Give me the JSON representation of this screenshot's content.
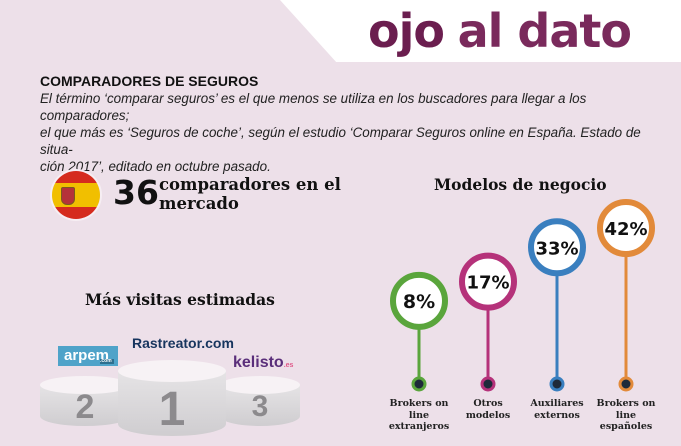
{
  "header": {
    "brand_part1": "ojo",
    "brand_part2": "al dato"
  },
  "section": {
    "title": "COMPARADORES DE SEGUROS",
    "intro_lines": [
      "El término ‘comparar seguros’ es el que menos se utiliza en los buscadores para llegar a los comparadores;",
      "el que más es ‘Seguros de coche’, según el estudio ‘Comparar Seguros online en España. Estado de situa-",
      "ción 2017’, editado en octubre pasado."
    ]
  },
  "count": {
    "number": "36",
    "label": "comparadores en el mercado",
    "icon": "spain-flag-icon"
  },
  "visits": {
    "title": "Más visitas estimadas",
    "podium": [
      {
        "rank": "1",
        "brand": "Rastreator.com"
      },
      {
        "rank": "2",
        "brand": "arpem",
        "brand_suffix": ".com"
      },
      {
        "rank": "3",
        "brand": "kelisto",
        "brand_suffix": ".es"
      }
    ]
  },
  "models": {
    "title": "Modelos de negocio",
    "items": [
      {
        "value": 8,
        "display": "8%",
        "label": "Brokers on line extranjeros",
        "color": "#5aa53c"
      },
      {
        "value": 17,
        "display": "17%",
        "label": "Otros modelos",
        "color": "#b5327a"
      },
      {
        "value": 33,
        "display": "33%",
        "label": "Auxiliares externos",
        "color": "#3a7fbf"
      },
      {
        "value": 42,
        "display": "42%",
        "label": "Brokers on line españoles",
        "color": "#e28a3a"
      }
    ]
  },
  "colors": {
    "background": "#ede0e9",
    "brand": "#6b1e4f"
  }
}
